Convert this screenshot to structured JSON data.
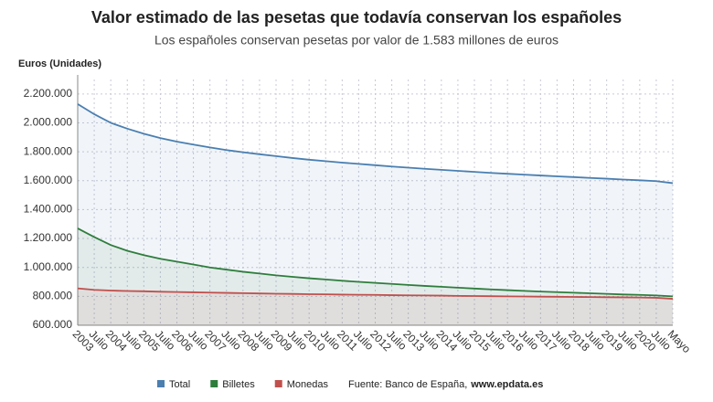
{
  "chart_data": {
    "type": "area",
    "title": "Valor estimado de las pesetas que todavía conservan los españoles",
    "subtitle": "Los españoles conservan pesetas por valor de 1.583 millones de euros",
    "y_label": "Euros (Unidades)",
    "source_label": "Fuente: Banco de España,",
    "source_link": "www.epdata.es",
    "categories": [
      "2003",
      "Julio",
      "2004",
      "Julio",
      "2005",
      "Julio",
      "2006",
      "Julio",
      "2007",
      "Julio",
      "2008",
      "Julio",
      "2009",
      "Julio",
      "2010",
      "Julio",
      "2011",
      "Julio",
      "2012",
      "Julio",
      "2013",
      "Julio",
      "2014",
      "Julio",
      "2015",
      "Julio",
      "2016",
      "Julio",
      "2017",
      "Julio",
      "2018",
      "Julio",
      "2019",
      "Julio",
      "2020",
      "Julio",
      "Mayo"
    ],
    "series": [
      {
        "name": "Total",
        "color": "#4a7fb0",
        "values": [
          2130000,
          2060000,
          2000000,
          1960000,
          1925000,
          1895000,
          1870000,
          1850000,
          1830000,
          1812000,
          1797000,
          1783000,
          1770000,
          1757000,
          1745000,
          1735000,
          1725000,
          1716000,
          1707000,
          1698000,
          1690000,
          1682000,
          1675000,
          1668000,
          1661000,
          1654000,
          1648000,
          1642000,
          1636000,
          1630000,
          1625000,
          1619000,
          1614000,
          1608000,
          1603000,
          1597000,
          1583000
        ]
      },
      {
        "name": "Billetes",
        "color": "#2e7d3c",
        "values": [
          1270000,
          1210000,
          1155000,
          1115000,
          1085000,
          1060000,
          1040000,
          1020000,
          1000000,
          985000,
          970000,
          958000,
          945000,
          935000,
          925000,
          917000,
          908000,
          900000,
          893000,
          886000,
          879000,
          872000,
          866000,
          860000,
          854000,
          848000,
          843000,
          838000,
          833000,
          829000,
          825000,
          821000,
          817000,
          813000,
          810000,
          806000,
          800000
        ]
      },
      {
        "name": "Monedas",
        "color": "#c0504d",
        "values": [
          855000,
          845000,
          840000,
          837000,
          835000,
          832000,
          830000,
          828000,
          826000,
          824000,
          822000,
          820000,
          818000,
          817000,
          815000,
          814000,
          812000,
          811000,
          810000,
          808000,
          807000,
          806000,
          805000,
          803000,
          802000,
          801000,
          800000,
          799000,
          798000,
          797000,
          796000,
          795000,
          794000,
          793000,
          792000,
          790000,
          783000
        ]
      }
    ],
    "ylim": [
      600000,
      2300000
    ],
    "yticks": [
      {
        "value": 600000,
        "label": "600.000"
      },
      {
        "value": 800000,
        "label": "800.000"
      },
      {
        "value": 1000000,
        "label": "1.000.000"
      },
      {
        "value": 1200000,
        "label": "1.200.000"
      },
      {
        "value": 1400000,
        "label": "1.400.000"
      },
      {
        "value": 1600000,
        "label": "1.600.000"
      },
      {
        "value": 1800000,
        "label": "1.800.000"
      },
      {
        "value": 2000000,
        "label": "2.000.000"
      },
      {
        "value": 2200000,
        "label": "2.200.000"
      }
    ],
    "grid": true
  }
}
